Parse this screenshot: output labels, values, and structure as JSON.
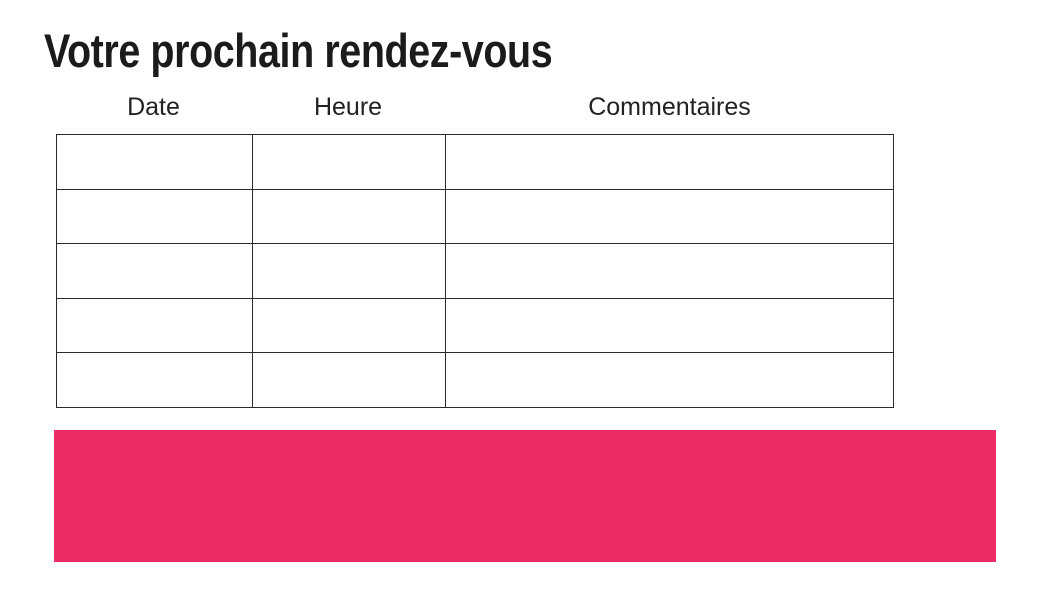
{
  "page": {
    "title": "Votre prochain rendez-vous",
    "background_color": "#ffffff"
  },
  "table": {
    "columns": [
      {
        "label": "Date"
      },
      {
        "label": "Heure"
      },
      {
        "label": "Commentaires"
      }
    ],
    "rows": [
      [
        "",
        "",
        ""
      ],
      [
        "",
        "",
        ""
      ],
      [
        "",
        "",
        ""
      ],
      [
        "",
        "",
        ""
      ],
      [
        "",
        "",
        ""
      ]
    ],
    "border_color": "#2b2b2b"
  },
  "banner": {
    "text": "",
    "color": "#ed2b67"
  }
}
